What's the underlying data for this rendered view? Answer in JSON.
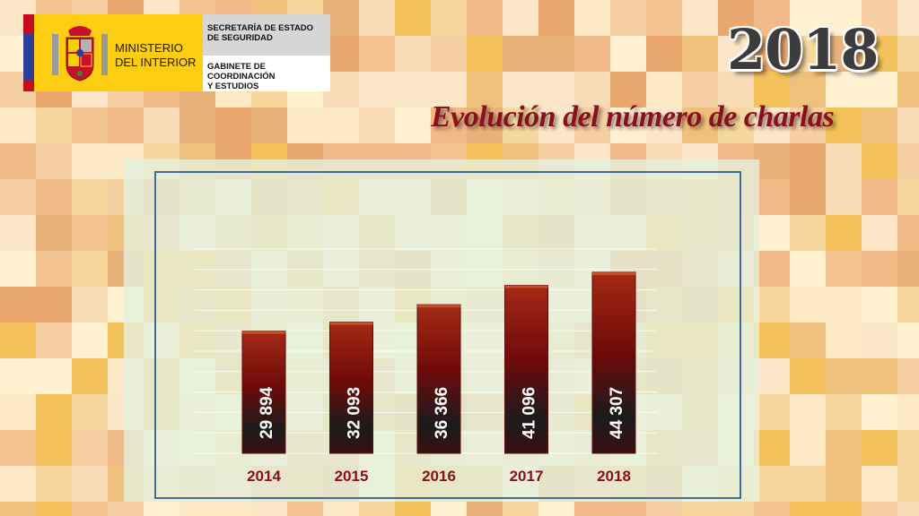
{
  "logo": {
    "ministry_line1": "MINISTERIO",
    "ministry_line2": "DEL INTERIOR",
    "secretaria_line1": "SECRETARÍA DE ESTADO",
    "secretaria_line2": "DE SEGURIDAD",
    "gabinete_line1": "GABINETE DE COORDINACIÓN",
    "gabinete_line2": "Y ESTUDIOS"
  },
  "header": {
    "year": "2018",
    "title": "Evolución del número de charlas"
  },
  "colors": {
    "bar_top": "#a52a14",
    "bar_mid": "#6e0a0a",
    "bar_bottom": "#1c1b1b",
    "tick_label": "#8b0f1c",
    "frame": "#3d6c9a"
  },
  "chart_data": {
    "type": "bar",
    "title": "Evolución del número de charlas",
    "categories": [
      "2014",
      "2015",
      "2016",
      "2017",
      "2018"
    ],
    "values": [
      29894,
      32093,
      36366,
      41096,
      44307
    ],
    "value_labels": [
      "29 894",
      "32 093",
      "36 366",
      "41 096",
      "44 307"
    ],
    "ylim": [
      0,
      50000
    ],
    "grid": true,
    "legend": "none",
    "xlabel": "",
    "ylabel": ""
  }
}
